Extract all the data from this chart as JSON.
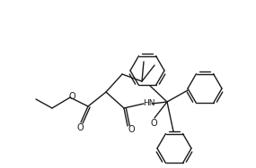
{
  "bg_color": "#ffffff",
  "line_color": "#1a1a1a",
  "lw": 1.0,
  "figsize": [
    2.85,
    1.88
  ],
  "dpi": 100,
  "xlim": [
    0,
    285
  ],
  "ylim": [
    0,
    188
  ]
}
